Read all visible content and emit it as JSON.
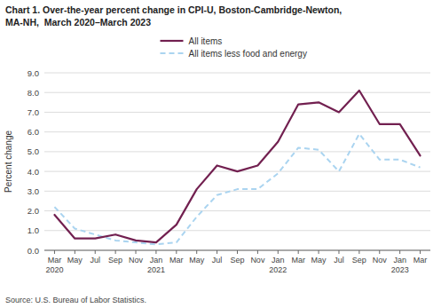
{
  "chart_data": {
    "type": "line",
    "title": "Chart 1. Over-the-year percent change in CPI-U, Boston-Cambridge-Newton,\nMA-NH,  March 2020–March 2023",
    "ylabel": "Percent change",
    "annotations": [
      "Source: U.S. Bureau of Labor Statistics."
    ],
    "categories": [
      "Mar\n2020",
      "May",
      "Jul",
      "Sep",
      "Nov",
      "Jan\n2021",
      "Mar",
      "May",
      "Jul",
      "Sep",
      "Nov",
      "Jan\n2022",
      "Mar",
      "May",
      "Jul",
      "Sep",
      "Nov",
      "Jan\n2023",
      "Mar"
    ],
    "series": [
      {
        "name": "All items",
        "color": "#722050",
        "line_style": "solid",
        "values": [
          1.8,
          0.6,
          0.6,
          0.8,
          0.5,
          0.4,
          1.3,
          3.1,
          4.3,
          4.0,
          4.3,
          5.5,
          7.4,
          7.5,
          7.0,
          8.1,
          6.4,
          6.4,
          4.8
        ]
      },
      {
        "name": "All items less food and energy",
        "color": "#aad4f0",
        "line_style": "dashed",
        "values": [
          2.2,
          1.1,
          0.8,
          0.5,
          0.4,
          0.3,
          0.4,
          1.7,
          2.8,
          3.1,
          3.1,
          3.9,
          5.2,
          5.1,
          4.0,
          5.9,
          4.6,
          4.6,
          4.2
        ]
      }
    ],
    "ylim": [
      0.0,
      9.0
    ],
    "yticks": [
      {
        "value": 0.0,
        "label": "0.0"
      },
      {
        "value": 1.0,
        "label": "1.0"
      },
      {
        "value": 2.0,
        "label": "2.0"
      },
      {
        "value": 3.0,
        "label": "3.0"
      },
      {
        "value": 4.0,
        "label": "4.0"
      },
      {
        "value": 5.0,
        "label": "5.0"
      },
      {
        "value": 6.0,
        "label": "6.0"
      },
      {
        "value": 7.0,
        "label": "7.0"
      },
      {
        "value": 8.0,
        "label": "8.0"
      },
      {
        "value": 9.0,
        "label": "9.0"
      }
    ],
    "grid": true,
    "legend": "top"
  }
}
